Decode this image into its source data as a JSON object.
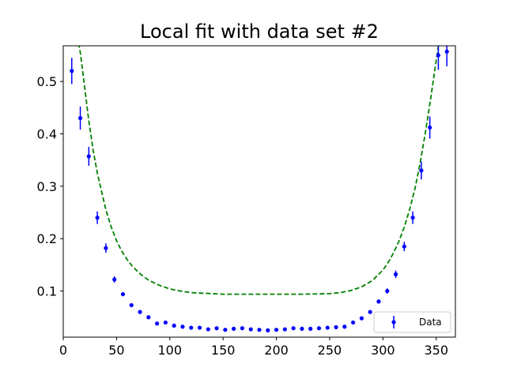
{
  "chart_data": {
    "type": "scatter",
    "title": "Local fit with data set #2",
    "xlabel": "",
    "ylabel": "",
    "xlim": [
      0,
      368
    ],
    "ylim": [
      0.012,
      0.568
    ],
    "xticks": [
      0,
      50,
      100,
      150,
      200,
      250,
      300,
      350
    ],
    "yticks": [
      0.1,
      0.2,
      0.3,
      0.4,
      0.5
    ],
    "grid": false,
    "legend": {
      "placement": "lower-right",
      "entries": [
        "Data"
      ]
    },
    "colors": {
      "data": "#0000ff",
      "fit": "#008000"
    },
    "series": [
      {
        "name": "Data",
        "style": "points-with-errorbars",
        "x": [
          8,
          16,
          24,
          32,
          40,
          48,
          56,
          64,
          72,
          80,
          88,
          96,
          104,
          112,
          120,
          128,
          136,
          144,
          152,
          160,
          168,
          176,
          184,
          192,
          200,
          208,
          216,
          224,
          232,
          240,
          248,
          256,
          264,
          272,
          280,
          288,
          296,
          304,
          312,
          320,
          328,
          336,
          344,
          352,
          360
        ],
        "y": [
          0.52,
          0.43,
          0.357,
          0.24,
          0.182,
          0.122,
          0.094,
          0.073,
          0.06,
          0.05,
          0.038,
          0.04,
          0.034,
          0.032,
          0.03,
          0.03,
          0.027,
          0.029,
          0.026,
          0.028,
          0.029,
          0.027,
          0.026,
          0.025,
          0.026,
          0.027,
          0.029,
          0.028,
          0.028,
          0.029,
          0.03,
          0.031,
          0.032,
          0.04,
          0.048,
          0.06,
          0.08,
          0.1,
          0.132,
          0.185,
          0.24,
          0.33,
          0.412,
          0.55,
          0.557
        ],
        "err": [
          0.025,
          0.022,
          0.018,
          0.012,
          0.009,
          0.006,
          0.004,
          0.003,
          0.003,
          0.002,
          0.002,
          0.002,
          0.002,
          0.002,
          0.002,
          0.002,
          0.002,
          0.002,
          0.002,
          0.002,
          0.002,
          0.002,
          0.002,
          0.002,
          0.002,
          0.002,
          0.002,
          0.002,
          0.002,
          0.002,
          0.002,
          0.002,
          0.002,
          0.002,
          0.002,
          0.003,
          0.004,
          0.005,
          0.007,
          0.009,
          0.012,
          0.017,
          0.021,
          0.028,
          0.028
        ]
      },
      {
        "name": "",
        "style": "dashed-line",
        "x": [
          12,
          16,
          20,
          24,
          28,
          32,
          36,
          40,
          45,
          50,
          55,
          60,
          65,
          70,
          75,
          80,
          90,
          100,
          110,
          120,
          130,
          140,
          150,
          175,
          200,
          225,
          250,
          260,
          270,
          280,
          290,
          300,
          305,
          310,
          315,
          320,
          325,
          330,
          335,
          340,
          345,
          350,
          353
        ],
        "y": [
          0.6,
          0.555,
          0.49,
          0.425,
          0.37,
          0.325,
          0.29,
          0.255,
          0.222,
          0.196,
          0.176,
          0.16,
          0.147,
          0.137,
          0.128,
          0.121,
          0.111,
          0.104,
          0.1,
          0.097,
          0.096,
          0.095,
          0.094,
          0.094,
          0.094,
          0.094,
          0.095,
          0.097,
          0.101,
          0.108,
          0.12,
          0.14,
          0.155,
          0.173,
          0.195,
          0.222,
          0.255,
          0.295,
          0.345,
          0.405,
          0.47,
          0.54,
          0.58
        ]
      }
    ]
  }
}
